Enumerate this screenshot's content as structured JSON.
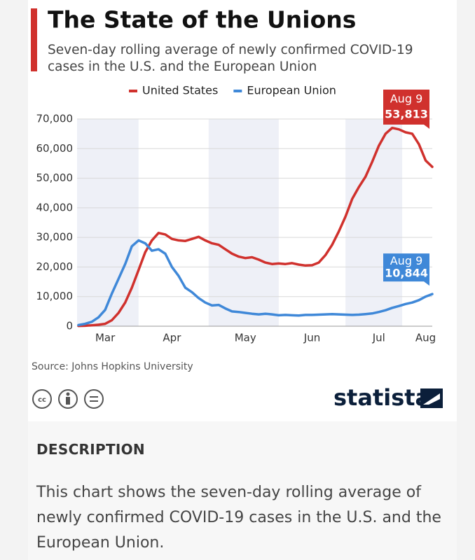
{
  "chart_data": {
    "type": "line",
    "title": "The State of the Unions",
    "subtitle": "Seven-day rolling average of newly confirmed COVID-19 cases in the U.S. and the European Union",
    "categories": [
      null,
      null,
      null,
      null,
      "Mar",
      null,
      null,
      null,
      null,
      null,
      null,
      null,
      null,
      null,
      "Apr",
      null,
      null,
      null,
      null,
      null,
      null,
      null,
      null,
      null,
      null,
      "May",
      null,
      null,
      null,
      null,
      null,
      null,
      null,
      null,
      null,
      "Jun",
      null,
      null,
      null,
      null,
      null,
      null,
      null,
      null,
      null,
      "Jul",
      null,
      null,
      null,
      null,
      null,
      null,
      "Aug",
      null
    ],
    "series": [
      {
        "name": "United States",
        "color": "#d0312d",
        "end_label": "Aug 9",
        "values": [
          100,
          150,
          300,
          500,
          800,
          2000,
          4500,
          8000,
          13000,
          19000,
          25000,
          29000,
          31500,
          31000,
          29500,
          29000,
          28800,
          29500,
          30200,
          29000,
          28000,
          27500,
          26000,
          24500,
          23500,
          23000,
          23300,
          22500,
          21500,
          21000,
          21200,
          21000,
          21300,
          20800,
          20500,
          20600,
          21500,
          24000,
          27500,
          32000,
          37000,
          43000,
          47000,
          50500,
          55500,
          61000,
          65000,
          67000,
          66500,
          65500,
          65000,
          61500,
          56000,
          53813
        ],
        "value_labels": [
          null,
          null,
          null,
          null,
          null,
          null,
          null,
          null,
          null,
          null,
          null,
          null,
          null,
          null,
          null,
          null,
          null,
          null,
          null,
          null,
          null,
          null,
          null,
          null,
          null,
          null,
          null,
          null,
          null,
          null,
          null,
          null,
          null,
          null,
          null,
          null,
          null,
          null,
          null,
          null,
          null,
          null,
          null,
          null,
          null,
          null,
          null,
          null,
          null,
          null,
          null,
          null,
          null,
          "53,813"
        ]
      },
      {
        "name": "European Union",
        "color": "#3f88d8",
        "end_label": "Aug 9",
        "values": [
          400,
          800,
          1500,
          3000,
          5500,
          11000,
          16000,
          21000,
          27000,
          29000,
          28000,
          25500,
          26000,
          24500,
          20000,
          17000,
          13000,
          11500,
          9500,
          8000,
          7000,
          7200,
          6000,
          5000,
          4800,
          4500,
          4200,
          4000,
          4200,
          4000,
          3700,
          3800,
          3700,
          3600,
          3800,
          3800,
          3900,
          4000,
          4100,
          4000,
          3900,
          3800,
          3900,
          4100,
          4300,
          4800,
          5400,
          6200,
          6800,
          7500,
          8000,
          8800,
          10000,
          10844
        ],
        "value_labels": [
          null,
          null,
          null,
          null,
          null,
          null,
          null,
          null,
          null,
          null,
          null,
          null,
          null,
          null,
          null,
          null,
          null,
          null,
          null,
          null,
          null,
          null,
          null,
          null,
          null,
          null,
          null,
          null,
          null,
          null,
          null,
          null,
          null,
          null,
          null,
          null,
          null,
          null,
          null,
          null,
          null,
          null,
          null,
          null,
          null,
          null,
          null,
          null,
          null,
          null,
          null,
          null,
          null,
          "10,844"
        ]
      }
    ],
    "ylim": [
      0,
      70000
    ],
    "yticks": [
      0,
      {
        "value": 10000,
        "label": "10,000"
      },
      {
        "value": 20000,
        "label": "20,000"
      },
      {
        "value": 30000,
        "label": "30,000"
      },
      {
        "value": 40000,
        "label": "40,000"
      },
      {
        "value": 50000,
        "label": "50,000"
      },
      {
        "value": 60000,
        "label": "60,000"
      },
      {
        "value": 70000,
        "label": "70,000"
      }
    ],
    "grid": true,
    "legend": "top"
  },
  "source": "Source: Johns Hopkins University",
  "brand": "statista",
  "description": {
    "heading": "DESCRIPTION",
    "text": "This chart shows the seven-day rolling average of newly confirmed COVID-19 cases in the U.S. and the European Union."
  }
}
